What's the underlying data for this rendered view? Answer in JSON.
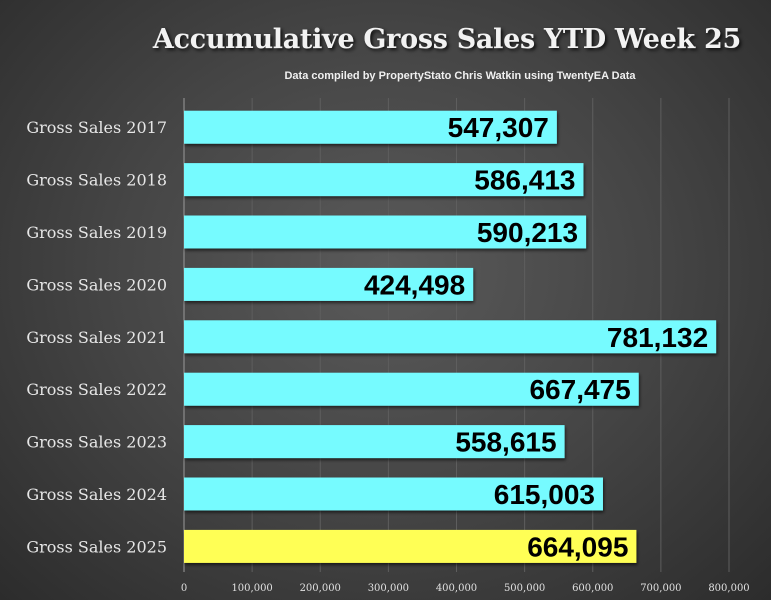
{
  "chart_data": {
    "type": "bar",
    "orientation": "horizontal",
    "title": "Accumulative Gross Sales YTD Week 25",
    "subtitle": "Data compiled by PropertyStato Chris Watkin using TwentyEA Data",
    "categories": [
      "Gross Sales 2017",
      "Gross Sales 2018",
      "Gross Sales 2019",
      "Gross Sales 2020",
      "Gross Sales 2021",
      "Gross Sales 2022",
      "Gross Sales 2023",
      "Gross Sales 2024",
      "Gross Sales 2025"
    ],
    "values": [
      547307,
      586413,
      590213,
      424498,
      781132,
      667475,
      558615,
      615003,
      664095
    ],
    "data_labels": [
      "547,307",
      "586,413",
      "590,213",
      "424,498",
      "781,132",
      "667,475",
      "558,615",
      "615,003",
      "664,095"
    ],
    "xlim": [
      0,
      800000
    ],
    "xticks": [
      "0",
      "100,000",
      "200,000",
      "300,000",
      "400,000",
      "500,000",
      "600,000",
      "700,000",
      "800,000"
    ],
    "grid": true,
    "colors": {
      "default": "#76fbff",
      "highlight": "#ffff55",
      "background": "#444444"
    },
    "highlight_index": 8
  }
}
